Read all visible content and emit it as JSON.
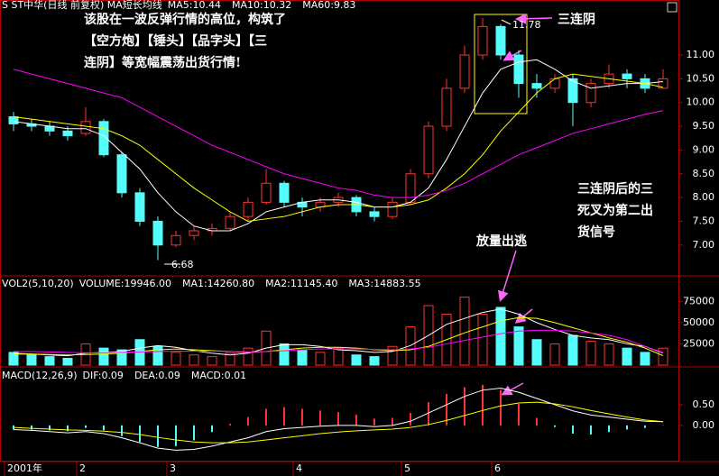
{
  "chart_data": [
    {
      "type": "candlestick",
      "title": "S ST中华(日线 前复权) MA短长均线",
      "categories": [
        "2001年",
        null,
        null,
        null,
        "2",
        null,
        null,
        null,
        null,
        "3",
        null,
        null,
        null,
        null,
        null,
        null,
        "4",
        null,
        null,
        null,
        null,
        null,
        "5",
        null,
        null,
        null,
        null,
        "6",
        null,
        null,
        null,
        null,
        null,
        null,
        null,
        null,
        null
      ],
      "open": [
        9.7,
        9.55,
        9.5,
        9.4,
        9.35,
        9.6,
        8.9,
        8.1,
        7.5,
        7.0,
        7.2,
        7.3,
        7.35,
        7.6,
        7.9,
        8.3,
        7.9,
        7.8,
        7.9,
        8.0,
        7.7,
        7.6,
        7.9,
        8.5,
        9.5,
        10.3,
        11.0,
        11.6,
        11.0,
        10.4,
        10.3,
        10.5,
        10.0,
        10.4,
        10.6,
        10.5,
        10.3
      ],
      "high": [
        9.8,
        9.65,
        9.6,
        9.5,
        9.9,
        9.65,
        8.95,
        8.2,
        7.6,
        7.3,
        7.4,
        7.45,
        7.7,
        8.0,
        8.6,
        8.35,
        8.0,
        8.0,
        8.1,
        8.05,
        7.8,
        8.0,
        8.6,
        9.6,
        10.5,
        11.2,
        11.78,
        11.65,
        11.1,
        10.6,
        10.6,
        10.6,
        10.5,
        10.8,
        10.7,
        10.6,
        10.7
      ],
      "low": [
        9.4,
        9.4,
        9.3,
        9.2,
        9.3,
        8.85,
        8.0,
        7.4,
        6.68,
        6.95,
        7.1,
        7.2,
        7.3,
        7.5,
        7.85,
        7.8,
        7.6,
        7.7,
        7.8,
        7.6,
        7.5,
        7.55,
        7.85,
        8.4,
        9.4,
        10.2,
        10.9,
        10.9,
        10.1,
        10.1,
        10.2,
        9.5,
        9.9,
        10.3,
        10.3,
        10.2,
        10.3
      ],
      "close": [
        9.55,
        9.5,
        9.4,
        9.3,
        9.6,
        8.9,
        8.1,
        7.5,
        7.0,
        7.2,
        7.3,
        7.35,
        7.6,
        7.9,
        8.3,
        7.9,
        7.8,
        7.9,
        8.0,
        7.7,
        7.6,
        7.9,
        8.5,
        9.5,
        10.3,
        11.0,
        11.6,
        11.0,
        10.4,
        10.3,
        10.5,
        10.0,
        10.4,
        10.6,
        10.5,
        10.3,
        10.5
      ],
      "up_color": "#ff3232",
      "down_color": "#54fcfc",
      "series": [
        {
          "name": "MA5:10.44",
          "color": "#ffffff",
          "values": [
            9.6,
            9.55,
            9.5,
            9.45,
            9.45,
            9.3,
            8.95,
            8.6,
            8.1,
            7.7,
            7.4,
            7.3,
            7.3,
            7.45,
            7.7,
            7.8,
            7.9,
            7.95,
            7.95,
            7.9,
            7.8,
            7.8,
            7.9,
            8.2,
            8.8,
            9.5,
            10.2,
            10.7,
            10.85,
            10.9,
            10.7,
            10.45,
            10.3,
            10.35,
            10.4,
            10.4,
            10.44
          ]
        },
        {
          "name": "MA10:10.32",
          "color": "#ffff00",
          "values": [
            9.7,
            9.65,
            9.6,
            9.55,
            9.5,
            9.45,
            9.3,
            9.1,
            8.8,
            8.5,
            8.2,
            7.95,
            7.7,
            7.5,
            7.55,
            7.6,
            7.7,
            7.8,
            7.85,
            7.85,
            7.8,
            7.8,
            7.85,
            7.95,
            8.2,
            8.5,
            8.9,
            9.4,
            9.8,
            10.2,
            10.5,
            10.6,
            10.55,
            10.5,
            10.45,
            10.4,
            10.32
          ]
        },
        {
          "name": "MA60:9.83",
          "color": "#ff00ff",
          "values": [
            10.7,
            10.6,
            10.5,
            10.4,
            10.3,
            10.2,
            10.1,
            9.9,
            9.7,
            9.5,
            9.3,
            9.1,
            8.95,
            8.8,
            8.65,
            8.5,
            8.4,
            8.3,
            8.2,
            8.15,
            8.05,
            8.0,
            8.0,
            8.05,
            8.15,
            8.3,
            8.5,
            8.7,
            8.9,
            9.05,
            9.2,
            9.35,
            9.45,
            9.55,
            9.65,
            9.75,
            9.83
          ]
        }
      ],
      "ylim": [
        6.37,
        11.93
      ],
      "yticks": [
        {
          "value": 7,
          "label": "7.00"
        },
        {
          "value": 7.5,
          "label": "7.50"
        },
        {
          "value": 8,
          "label": "8.00"
        },
        {
          "value": 8.5,
          "label": "8.50"
        },
        {
          "value": 9,
          "label": "9.00"
        },
        {
          "value": 9.5,
          "label": "9.50"
        },
        {
          "value": 10,
          "label": "10.00"
        },
        {
          "value": 10.5,
          "label": "10.50"
        },
        {
          "value": 11,
          "label": "11.00"
        }
      ],
      "annotations": [
        {
          "text": "该股在一波反弹行情的高位，构筑了",
          "color": "#ff2d78"
        },
        {
          "text": "【空方炮】【锤头】【品字头】【三",
          "color": "#ff2d78"
        },
        {
          "text": "连阴】等宽幅震荡出货行情!",
          "color": "#ff2d78"
        },
        {
          "text": "三连阴",
          "color": "#ff2d78"
        },
        {
          "text": "三连阴后的三",
          "color": "#ff2d78"
        },
        {
          "text": "死叉为第二出",
          "color": "#ff2d78"
        },
        {
          "text": "货信号",
          "color": "#ff2d78"
        },
        {
          "text": "放量出逃",
          "color": "#ff2d78"
        }
      ]
    },
    {
      "type": "volume",
      "title": "VOL2(5,10,20)",
      "series": [
        {
          "name": "VOLUME:19946.00",
          "color": "#ffffff",
          "values": [
            15000,
            12000,
            10000,
            8000,
            25000,
            20000,
            18000,
            30000,
            22000,
            15000,
            12000,
            10000,
            14000,
            20000,
            40000,
            25000,
            18000,
            15000,
            20000,
            12000,
            10000,
            22000,
            45000,
            70000,
            60000,
            80000,
            60000,
            68000,
            45000,
            30000,
            25000,
            35000,
            28000,
            25000,
            20000,
            15000,
            19946
          ]
        },
        {
          "name": "MA1:14260.80",
          "color": "#ffffff",
          "values": [
            14000,
            13000,
            12000,
            11000,
            14000,
            15000,
            16000,
            20000,
            23000,
            21000,
            17000,
            14000,
            12000,
            14000,
            20000,
            24000,
            24000,
            22000,
            18000,
            17000,
            15000,
            16000,
            23000,
            35000,
            48000,
            55000,
            62000,
            66000,
            60000,
            50000,
            42000,
            35000,
            32000,
            30000,
            25000,
            22000,
            14260.8
          ]
        },
        {
          "name": "MA2:11145.40",
          "color": "#ffff00",
          "values": [
            13000,
            13000,
            12500,
            12000,
            12500,
            13000,
            14000,
            16000,
            18000,
            19000,
            18000,
            17000,
            16000,
            15000,
            16000,
            18000,
            20000,
            21000,
            21000,
            20000,
            18000,
            17000,
            18000,
            22000,
            30000,
            38000,
            45000,
            52000,
            56000,
            55000,
            50000,
            44000,
            38000,
            32000,
            27000,
            20000,
            11145.4
          ]
        },
        {
          "name": "MA3:14883.55",
          "color": "#ff00ff",
          "values": [
            16000,
            16000,
            15500,
            15000,
            14500,
            14500,
            15000,
            15500,
            16000,
            16500,
            16500,
            16500,
            16000,
            15500,
            16000,
            17000,
            18000,
            19000,
            19000,
            19000,
            18500,
            18000,
            19000,
            21000,
            25000,
            29000,
            33000,
            37000,
            40000,
            41000,
            41000,
            40000,
            38000,
            35000,
            30000,
            22000,
            14883.55
          ]
        }
      ],
      "ylim": [
        0,
        104000
      ],
      "yticks": [
        25000,
        50000,
        75000
      ]
    },
    {
      "type": "macd",
      "title": "MACD(12,26,9)",
      "series": [
        {
          "name": "DIF:0.09",
          "color": "#ffffff",
          "values": [
            -0.1,
            -0.12,
            -0.15,
            -0.18,
            -0.15,
            -0.2,
            -0.3,
            -0.42,
            -0.55,
            -0.6,
            -0.58,
            -0.5,
            -0.4,
            -0.3,
            -0.15,
            -0.08,
            -0.05,
            -0.02,
            0.0,
            0.0,
            -0.03,
            0.0,
            0.1,
            0.3,
            0.5,
            0.7,
            0.85,
            0.9,
            0.8,
            0.65,
            0.5,
            0.35,
            0.25,
            0.2,
            0.15,
            0.1,
            0.09
          ]
        },
        {
          "name": "DEA:0.09",
          "color": "#ffff00",
          "values": [
            -0.05,
            -0.07,
            -0.09,
            -0.11,
            -0.12,
            -0.14,
            -0.17,
            -0.22,
            -0.29,
            -0.35,
            -0.4,
            -0.42,
            -0.42,
            -0.4,
            -0.35,
            -0.3,
            -0.25,
            -0.2,
            -0.16,
            -0.13,
            -0.11,
            -0.09,
            -0.05,
            0.02,
            0.12,
            0.24,
            0.36,
            0.47,
            0.54,
            0.56,
            0.52,
            0.45,
            0.36,
            0.28,
            0.2,
            0.13,
            0.09
          ]
        },
        {
          "name": "MACD:0.01",
          "color": "#ff00ff",
          "values": [
            -0.1,
            -0.1,
            -0.12,
            -0.14,
            -0.06,
            -0.12,
            -0.26,
            -0.4,
            -0.52,
            -0.5,
            -0.36,
            -0.16,
            0.04,
            0.2,
            0.4,
            0.44,
            0.4,
            0.36,
            0.32,
            0.26,
            0.16,
            0.18,
            0.3,
            0.56,
            0.76,
            0.92,
            0.98,
            0.86,
            0.52,
            0.18,
            -0.04,
            -0.2,
            -0.22,
            -0.16,
            -0.1,
            -0.06,
            0.01
          ]
        }
      ],
      "ylim": [
        -0.83,
        1.39
      ],
      "yticks": [
        {
          "value": 0,
          "label": "0.00"
        },
        {
          "value": 0.5,
          "label": "0.50"
        }
      ]
    }
  ]
}
